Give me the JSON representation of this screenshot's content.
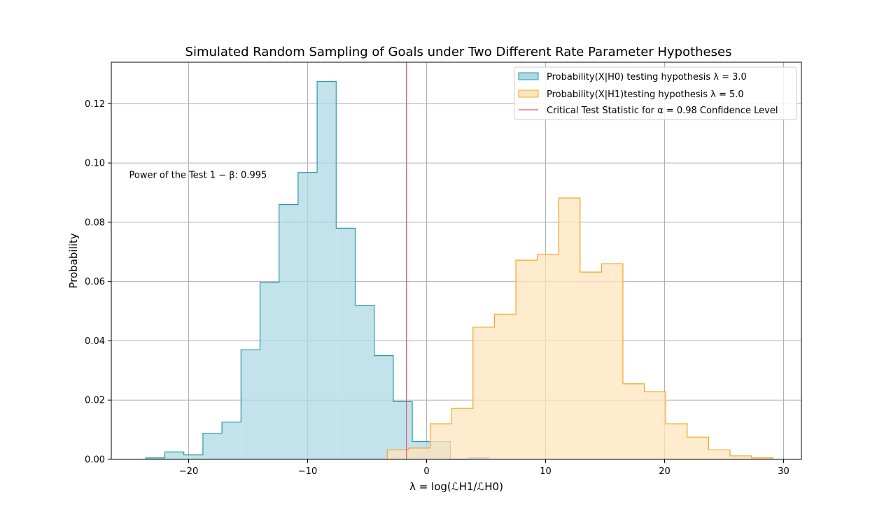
{
  "chart_data": {
    "type": "histogram",
    "title": "Simulated Random Sampling of Goals under Two Different Rate Parameter Hypotheses",
    "xlabel": "λ = log(ℒH1/ℒH0)",
    "ylabel": "Probability",
    "xlim": [
      -26.5,
      31.5
    ],
    "ylim": [
      0,
      0.134
    ],
    "xticks": [
      -20,
      -10,
      0,
      10,
      20,
      30
    ],
    "xtick_labels": [
      "−20",
      "−10",
      "0",
      "10",
      "20",
      "30"
    ],
    "yticks": [
      0,
      0.02,
      0.04,
      0.06,
      0.08,
      0.1,
      0.12
    ],
    "ytick_labels": [
      "0.00",
      "0.02",
      "0.04",
      "0.06",
      "0.08",
      "0.10",
      "0.12"
    ],
    "grid": true,
    "legend_position": "top-right",
    "series": [
      {
        "name": "Probability(X|H0) testing hypothesis λ = 3.0",
        "color": "#add8e6",
        "edge_color": "#2a9aa8",
        "bin_edges": [
          -23.6,
          -22.0,
          -20.4,
          -18.8,
          -17.2,
          -15.6,
          -14.0,
          -12.4,
          -10.8,
          -9.2,
          -7.6,
          -6.0,
          -4.4,
          -2.8,
          -1.2,
          0.4,
          2.0,
          3.6,
          5.2
        ],
        "values": [
          0.0005,
          0.0025,
          0.0015,
          0.0088,
          0.0126,
          0.037,
          0.0596,
          0.086,
          0.0968,
          0.1275,
          0.078,
          0.052,
          0.035,
          0.0195,
          0.006,
          0.006,
          0.0,
          0.0005
        ]
      },
      {
        "name": "Probability(X|H1)testing hypothesis λ = 5.0",
        "color": "#ffe4bc",
        "edge_color": "#f5a623",
        "bin_edges": [
          -3.3,
          -1.5,
          0.3,
          2.1,
          3.9,
          5.7,
          7.5,
          9.3,
          11.1,
          12.9,
          14.7,
          16.5,
          18.3,
          20.1,
          21.9,
          23.7,
          25.5,
          27.3,
          29.1
        ],
        "values": [
          0.0032,
          0.0038,
          0.012,
          0.0172,
          0.0446,
          0.049,
          0.0672,
          0.0692,
          0.0882,
          0.0632,
          0.066,
          0.0255,
          0.0228,
          0.012,
          0.0075,
          0.0032,
          0.0012,
          0.0005
        ]
      }
    ],
    "critical_line": {
      "name": "Critical Test Statistic for α = 0.98 Confidence Level",
      "x": -1.7,
      "color": "#e8507a"
    },
    "annotation": {
      "text": "Power of the Test 1 − β: 0.995",
      "x": -25.0,
      "y": 0.095
    }
  }
}
